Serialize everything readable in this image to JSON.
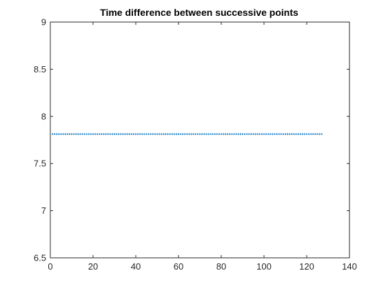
{
  "chart_data": {
    "type": "scatter",
    "title": "Time difference between successive points",
    "xlabel": "",
    "ylabel": "",
    "xlim": [
      0,
      140
    ],
    "ylim": [
      6.5,
      9
    ],
    "x_ticks": [
      0,
      20,
      40,
      60,
      80,
      100,
      120,
      140
    ],
    "y_ticks": [
      6.5,
      7,
      7.5,
      8,
      8.5,
      9
    ],
    "x_tick_labels": [
      "0",
      "20",
      "40",
      "60",
      "80",
      "100",
      "120",
      "140"
    ],
    "y_tick_labels": [
      "6.5",
      "7",
      "7.5",
      "8",
      "8.5",
      "9"
    ],
    "grid": false,
    "series": [
      {
        "color": "#0072BD",
        "marker": "dot",
        "x_start": 1,
        "x_end": 127,
        "x_step": 1,
        "y_constant": 7.8125
      }
    ]
  }
}
